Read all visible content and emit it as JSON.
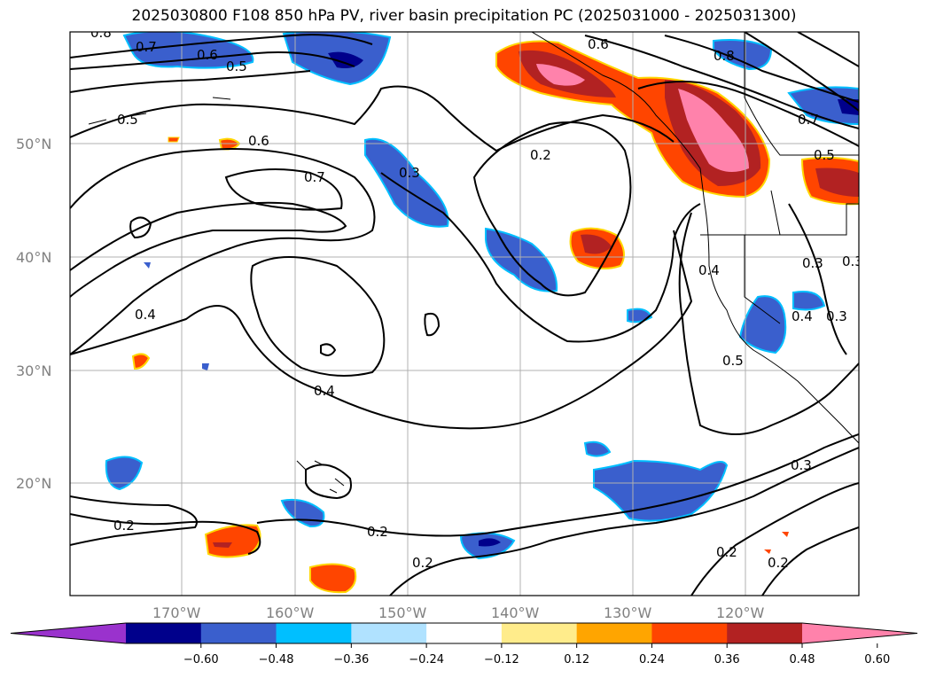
{
  "title": "2025030800 F108 850 hPa PV, river basin precipitation PC (2025031000 - 2025031300)",
  "map": {
    "lat_labels": [
      "50°N",
      "40°N",
      "30°N",
      "20°N"
    ],
    "lon_labels": [
      "170°W",
      "160°W",
      "150°W",
      "140°W",
      "130°W",
      "120°W"
    ],
    "contour_labels": [
      {
        "text": "0.8"
      },
      {
        "text": "0.7"
      },
      {
        "text": "0.6"
      },
      {
        "text": "0.5"
      },
      {
        "text": "0.5"
      },
      {
        "text": "0.6"
      },
      {
        "text": "0.7"
      },
      {
        "text": "0.3"
      },
      {
        "text": "0.2"
      },
      {
        "text": "0.6"
      },
      {
        "text": "0.8"
      },
      {
        "text": "0.7"
      },
      {
        "text": "0.5"
      },
      {
        "text": "0.4"
      },
      {
        "text": "0.4"
      },
      {
        "text": "0.4"
      },
      {
        "text": "0.3"
      },
      {
        "text": "0.4"
      },
      {
        "text": "0.3"
      },
      {
        "text": "0.5"
      },
      {
        "text": "0.3"
      },
      {
        "text": "0.2"
      },
      {
        "text": "0.2"
      },
      {
        "text": "0.2"
      },
      {
        "text": "0.2"
      },
      {
        "text": "0.2"
      },
      {
        "text": "0.3"
      }
    ]
  },
  "colorbar": {
    "ticks": [
      "−0.60",
      "−0.48",
      "−0.36",
      "−0.24",
      "−0.12",
      "0.12",
      "0.24",
      "0.36",
      "0.48",
      "0.60"
    ],
    "colors": [
      "#9a32cd",
      "#00008b",
      "#3a5fcd",
      "#00bfff",
      "#b0e2ff",
      "#ffffff",
      "#ffec8b",
      "#ffa500",
      "#ff4500",
      "#b22222",
      "#ff82ab"
    ]
  }
}
